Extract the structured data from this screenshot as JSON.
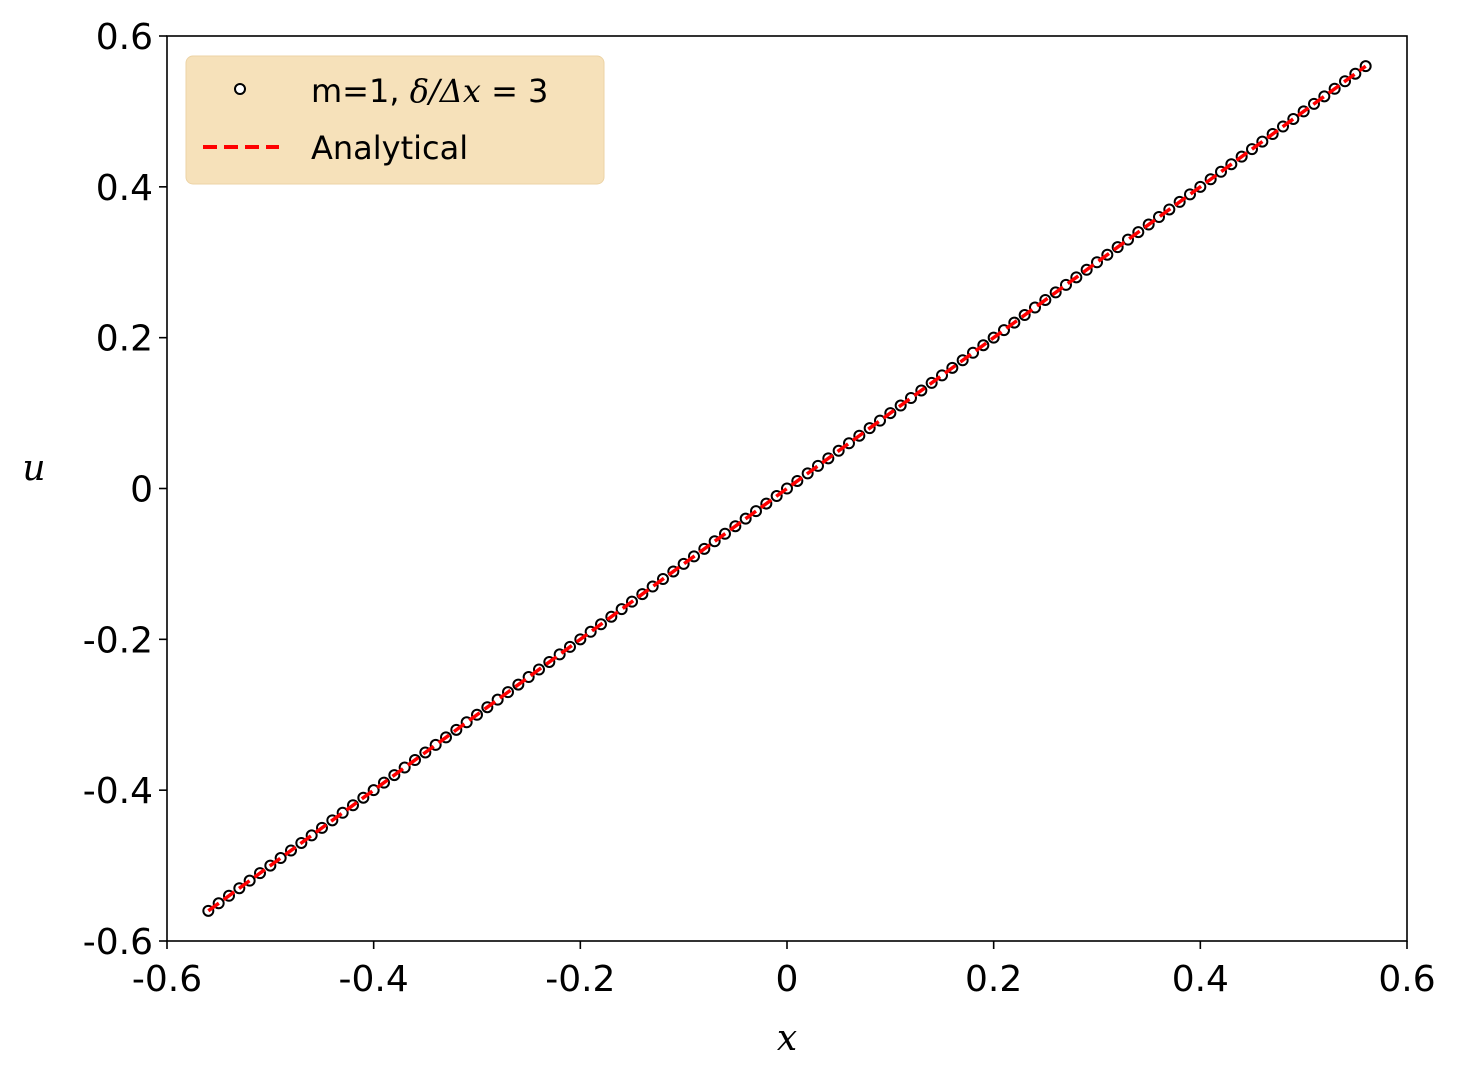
{
  "chart_data": {
    "type": "scatter",
    "xlabel": "x",
    "ylabel": "u",
    "xlim": [
      -0.6,
      0.6
    ],
    "ylim": [
      -0.6,
      0.6
    ],
    "x_ticks": [
      "-0.6",
      "-0.4",
      "-0.2",
      "0",
      "0.2",
      "0.4",
      "0.6"
    ],
    "y_ticks": [
      "-0.6",
      "-0.4",
      "-0.2",
      "0",
      "0.2",
      "0.4",
      "0.6"
    ],
    "grid": false,
    "legend_position": "top-left",
    "legend_bg": "#f5deb3",
    "series": [
      {
        "name": "m=1, δ/Δx = 3",
        "name_parts": {
          "prefix": "m=1, ",
          "math": "δ/Δx",
          "suffix": " = 3"
        },
        "type": "scatter",
        "marker": "open-circle",
        "color": "#000000",
        "x_start": -0.56,
        "x_end": 0.56,
        "x_step": 0.01,
        "slope": 1.0
      },
      {
        "name": "Analytical",
        "type": "line",
        "style": "dashed",
        "color": "#ff0000",
        "x": [
          -0.56,
          0.56
        ],
        "y": [
          -0.56,
          0.56
        ]
      }
    ]
  }
}
